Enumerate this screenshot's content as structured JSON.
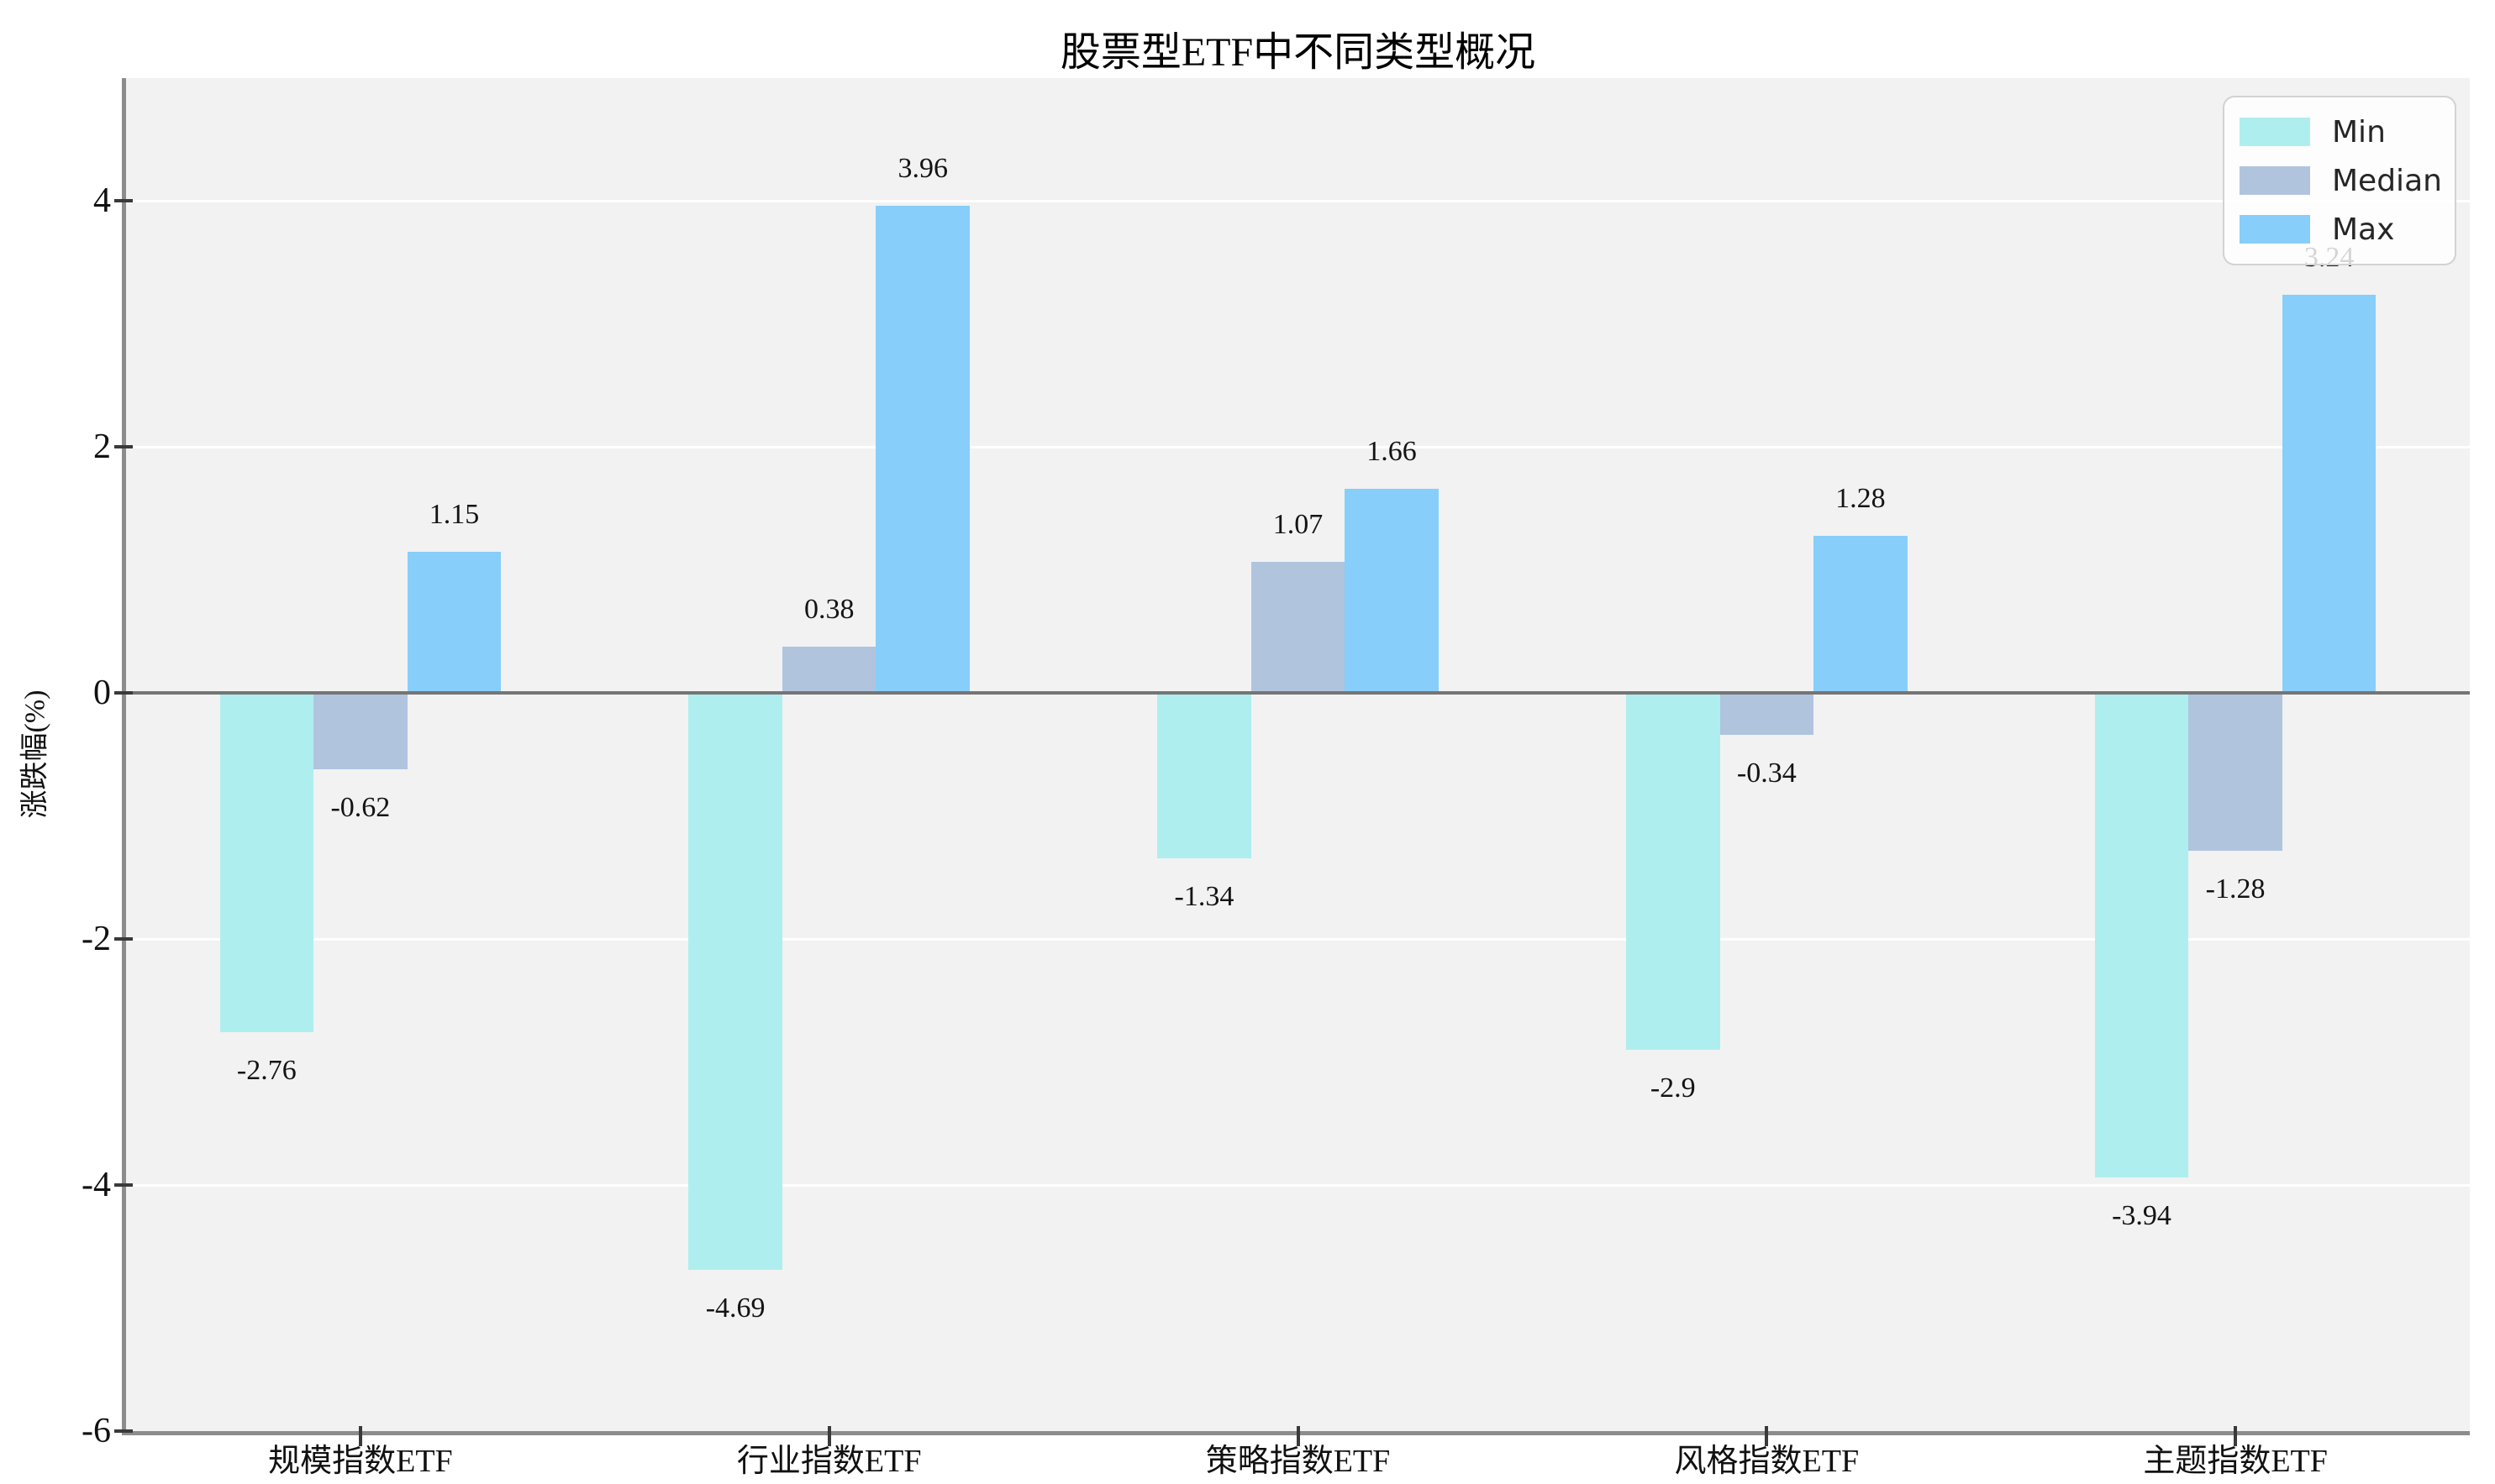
{
  "chart_data": {
    "type": "bar",
    "title": "股票型ETF中不同类型概况",
    "xlabel": "",
    "ylabel": "涨跌幅(%)",
    "categories": [
      "规模指数ETF",
      "行业指数ETF",
      "策略指数ETF",
      "风格指数ETF",
      "主题指数ETF"
    ],
    "series": [
      {
        "name": "Min",
        "color": "#AFEEEE",
        "values": [
          -2.76,
          -4.69,
          -1.34,
          -2.9,
          -3.94
        ],
        "labels": [
          "-2.76",
          "-4.69",
          "-1.34",
          "-2.9",
          "-3.94"
        ]
      },
      {
        "name": "Median",
        "color": "#B0C4DE",
        "values": [
          -0.62,
          0.38,
          1.07,
          -0.34,
          -1.28
        ],
        "labels": [
          "-0.62",
          "0.38",
          "1.07",
          "-0.34",
          "-1.28"
        ]
      },
      {
        "name": "Max",
        "color": "#87CEFA",
        "values": [
          1.15,
          3.96,
          1.66,
          1.28,
          3.24
        ],
        "labels": [
          "1.15",
          "3.96",
          "1.66",
          "1.28",
          "3.24"
        ]
      }
    ],
    "ylim": [
      -6,
      5
    ],
    "yticks": [
      {
        "value": 4,
        "label": "4"
      },
      {
        "value": 2,
        "label": "2"
      },
      {
        "value": 0,
        "label": "0"
      },
      {
        "value": -2,
        "label": "-2"
      },
      {
        "value": -4,
        "label": "-4"
      },
      {
        "value": -6,
        "label": "-6"
      }
    ],
    "grid": true,
    "legend_position": "upper right",
    "colors": {
      "plot_background": "#f2f2f2",
      "grid_line": "#ffffff",
      "zero_line": "#757575",
      "spine": "#8c8c8c",
      "text": "#141414"
    }
  }
}
